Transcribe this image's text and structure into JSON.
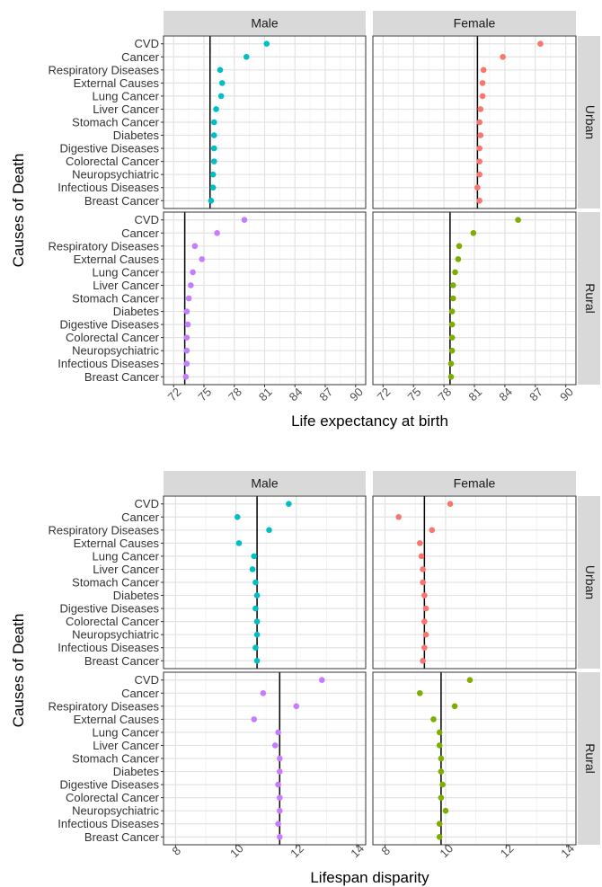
{
  "chart_data": [
    {
      "type": "scatter",
      "xlabel": "Life expectancy at birth",
      "ylabel": "Causes of Death",
      "xlim": [
        71,
        91
      ],
      "xticks": [
        72,
        75,
        78,
        81,
        84,
        87,
        90
      ],
      "columns": [
        "Male",
        "Female"
      ],
      "rows": [
        "Urban",
        "Rural"
      ],
      "categories": [
        "CVD",
        "Cancer",
        "Respiratory Diseases",
        "External Causes",
        "Lung Cancer",
        "Liver Cancer",
        "Stomach Cancer",
        "Diabetes",
        "Digestive Diseases",
        "Colorectal Cancer",
        "Neuropsychiatric",
        "Infectious Diseases",
        "Breast Cancer"
      ],
      "grid": true,
      "panels": [
        {
          "col": "Male",
          "row": "Urban",
          "color": "#00bfc4",
          "reference": 75.6,
          "values": [
            81.2,
            79.2,
            76.6,
            76.8,
            76.7,
            76.2,
            76.0,
            76.0,
            76.0,
            76.0,
            75.9,
            75.9,
            75.7
          ]
        },
        {
          "col": "Female",
          "row": "Urban",
          "color": "#f8766d",
          "reference": 81.3,
          "values": [
            87.5,
            83.8,
            81.9,
            81.8,
            81.8,
            81.6,
            81.5,
            81.6,
            81.5,
            81.5,
            81.5,
            81.3,
            81.5
          ]
        },
        {
          "col": "Male",
          "row": "Rural",
          "color": "#c77cff",
          "reference": 73.1,
          "values": [
            79.0,
            76.3,
            74.1,
            74.8,
            73.9,
            73.7,
            73.5,
            73.3,
            73.4,
            73.3,
            73.3,
            73.3,
            73.2
          ]
        },
        {
          "col": "Female",
          "row": "Rural",
          "color": "#7cae00",
          "reference": 78.6,
          "values": [
            85.3,
            80.9,
            79.5,
            79.4,
            79.1,
            78.9,
            78.9,
            78.8,
            78.8,
            78.8,
            78.8,
            78.7,
            78.7
          ]
        }
      ]
    },
    {
      "type": "scatter",
      "xlabel": "Lifespan disparity",
      "ylabel": "Causes of Death",
      "xlim": [
        7.6,
        14.3
      ],
      "xticks": [
        8,
        10,
        12,
        14
      ],
      "columns": [
        "Male",
        "Female"
      ],
      "rows": [
        "Urban",
        "Rural"
      ],
      "categories": [
        "CVD",
        "Cancer",
        "Respiratory Diseases",
        "External Causes",
        "Lung Cancer",
        "Liver Cancer",
        "Stomach Cancer",
        "Diabetes",
        "Digestive Diseases",
        "Colorectal Cancer",
        "Neuropsychiatric",
        "Infectious Diseases",
        "Breast Cancer"
      ],
      "grid": true,
      "panels": [
        {
          "col": "Male",
          "row": "Urban",
          "color": "#00bfc4",
          "reference": 10.7,
          "values": [
            11.75,
            10.05,
            11.1,
            10.1,
            10.6,
            10.55,
            10.65,
            10.7,
            10.65,
            10.7,
            10.7,
            10.65,
            10.7
          ]
        },
        {
          "col": "Female",
          "row": "Urban",
          "color": "#f8766d",
          "reference": 9.3,
          "values": [
            10.15,
            8.45,
            9.55,
            9.15,
            9.2,
            9.25,
            9.25,
            9.3,
            9.35,
            9.3,
            9.35,
            9.3,
            9.25
          ]
        },
        {
          "col": "Male",
          "row": "Rural",
          "color": "#c77cff",
          "reference": 11.45,
          "values": [
            12.85,
            10.9,
            12.0,
            10.6,
            11.4,
            11.3,
            11.45,
            11.45,
            11.4,
            11.45,
            11.45,
            11.4,
            11.45
          ]
        },
        {
          "col": "Female",
          "row": "Rural",
          "color": "#7cae00",
          "reference": 9.85,
          "values": [
            10.8,
            9.15,
            10.3,
            9.6,
            9.8,
            9.8,
            9.85,
            9.85,
            9.9,
            9.85,
            10.0,
            9.8,
            9.8
          ]
        }
      ]
    }
  ]
}
